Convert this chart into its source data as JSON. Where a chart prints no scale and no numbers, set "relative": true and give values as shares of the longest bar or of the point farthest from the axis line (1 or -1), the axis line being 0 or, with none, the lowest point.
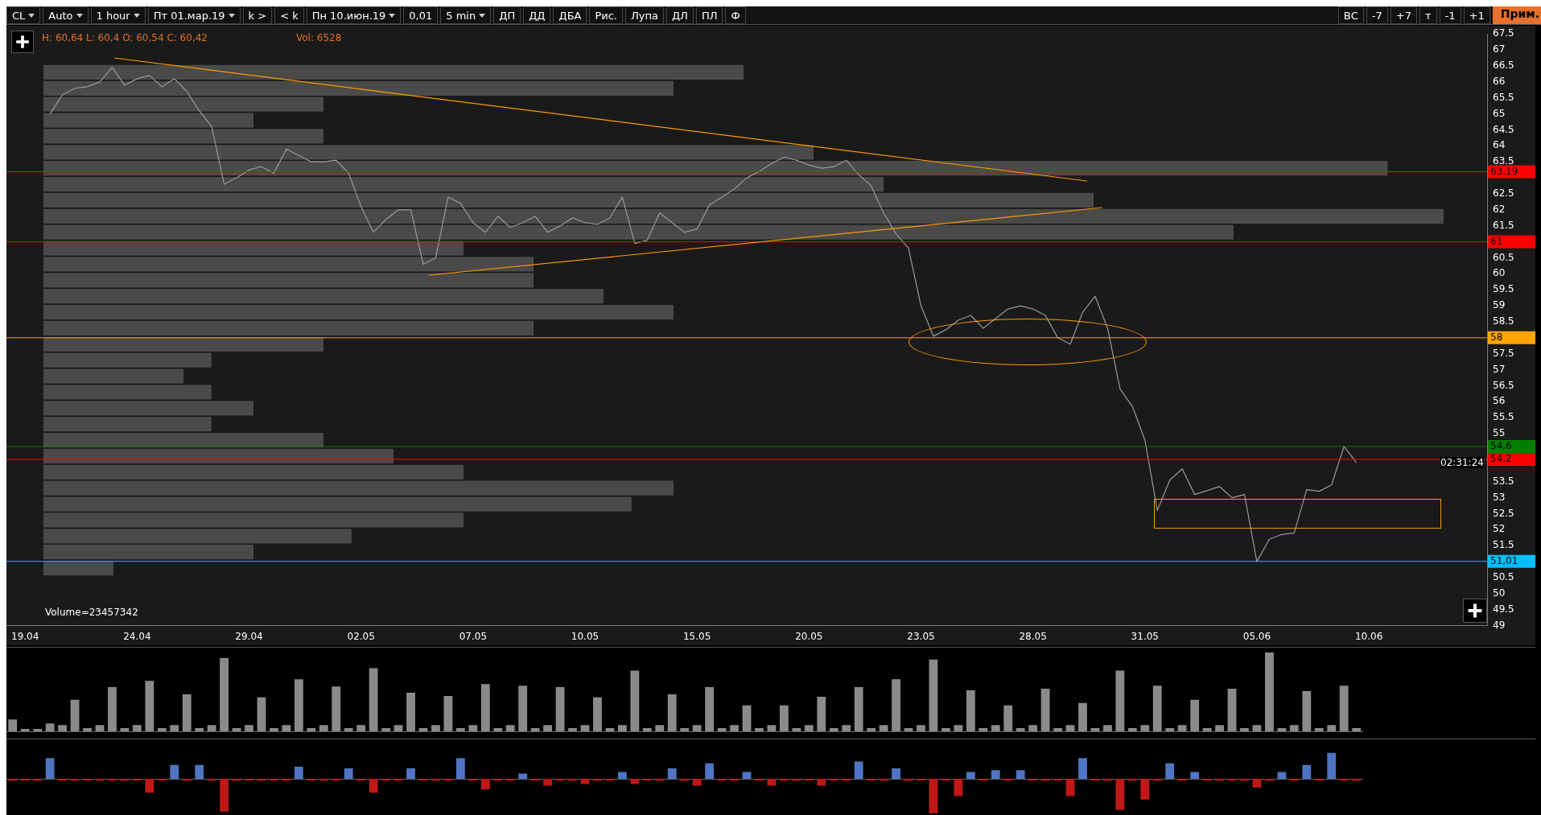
{
  "chart_data": [
    {
      "type": "other",
      "annotations": [
        "CL",
        "Auto",
        "1 hour",
        "Пт 01.мар.19",
        "k >",
        "< k",
        "Пн 10.июн.19",
        "0,01",
        "5 min",
        "ДП",
        "ДД",
        "ДБА",
        "Рис.",
        "Лупа",
        "ДЛ",
        "ПЛ",
        "Ф",
        "ВС",
        "-7",
        "+7",
        "т",
        "-1",
        "+1",
        "Прим."
      ]
    },
    {
      "type": "line",
      "ylim": [
        49,
        67.5
      ],
      "categories": [
        null,
        "19.04",
        null,
        null,
        null,
        null,
        null,
        null,
        null,
        null,
        "24.04",
        null,
        null,
        null,
        null,
        null,
        null,
        null,
        null,
        "29.04",
        null,
        null,
        null,
        null,
        null,
        null,
        null,
        null,
        "02.05",
        null,
        null,
        null,
        null,
        null,
        null,
        null,
        null,
        "07.05",
        null,
        null,
        null,
        null,
        null,
        null,
        null,
        null,
        "10.05",
        null,
        null,
        null,
        null,
        null,
        null,
        null,
        null,
        "15.05",
        null,
        null,
        null,
        null,
        null,
        null,
        null,
        null,
        "20.05",
        null,
        null,
        null,
        null,
        null,
        null,
        null,
        null,
        "23.05",
        null,
        null,
        null,
        null,
        null,
        null,
        null,
        null,
        "28.05",
        null,
        null,
        null,
        null,
        null,
        null,
        null,
        null,
        "31.05",
        null,
        null,
        null,
        null,
        null,
        null,
        null,
        null,
        "05.06",
        null,
        null,
        null,
        null,
        null,
        null,
        null,
        null,
        "10.06",
        null,
        null,
        null,
        null,
        null,
        null,
        null,
        null,
        null
      ],
      "yticks": [
        49,
        49.5,
        50,
        50.5,
        51.5,
        52,
        52.5,
        53,
        53.5,
        55,
        55.5,
        56,
        56.5,
        57,
        57.5,
        58.5,
        59,
        59.5,
        60,
        60.5,
        61.5,
        62,
        62.5,
        63.5,
        64,
        64.5,
        65,
        65.5,
        66,
        66.5,
        67,
        67.5
      ],
      "series": [
        {
          "color": "#9a9a9a",
          "values": [
            null,
            null,
            null,
            65.0,
            65.6,
            65.8,
            65.85,
            66.0,
            66.45,
            65.9,
            66.1,
            66.2,
            65.85,
            66.1,
            65.7,
            65.1,
            64.6,
            62.8,
            63.0,
            63.25,
            63.35,
            63.15,
            63.9,
            63.7,
            63.5,
            63.5,
            63.55,
            63.15,
            62.1,
            61.3,
            61.7,
            62.0,
            62.0,
            60.3,
            60.5,
            62.4,
            62.2,
            61.6,
            61.3,
            61.8,
            61.45,
            61.6,
            61.8,
            61.3,
            61.5,
            61.75,
            61.6,
            61.55,
            61.75,
            62.4,
            60.95,
            61.05,
            61.9,
            61.6,
            61.3,
            61.4,
            62.15,
            62.4,
            62.65,
            63.0,
            63.2,
            63.45,
            63.65,
            63.55,
            63.4,
            63.3,
            63.35,
            63.55,
            63.1,
            62.75,
            61.9,
            61.25,
            60.8,
            59.0,
            58.05,
            58.25,
            58.55,
            58.7,
            58.3,
            58.6,
            58.9,
            59.0,
            58.9,
            58.7,
            58.0,
            57.8,
            58.8,
            59.3,
            58.3,
            56.4,
            55.85,
            54.8,
            52.6,
            53.55,
            53.9,
            53.1,
            53.22,
            53.35,
            53.0,
            53.1,
            51.0,
            51.7,
            51.85,
            51.9,
            53.25,
            53.2,
            53.4,
            54.6,
            54.1,
            null,
            null,
            null,
            null,
            null,
            null,
            null,
            null,
            null,
            null
          ]
        }
      ],
      "ref_lines": [
        {
          "axis": "y",
          "value": 63.19,
          "label": "63,19",
          "color": "#ff0000"
        },
        {
          "axis": "y",
          "value": 61,
          "label": "61",
          "color": "#ff0000"
        },
        {
          "axis": "y",
          "value": 58,
          "label": "58",
          "color": "#ffa500"
        },
        {
          "axis": "y",
          "value": 54.6,
          "label": "54,6",
          "color": "#008000"
        },
        {
          "axis": "y",
          "value": 54.2,
          "label": "54,2",
          "color": "#ff0000"
        },
        {
          "axis": "y",
          "value": 51.01,
          "label": "51,01",
          "color": "#00bfff"
        }
      ],
      "annotations": [
        "H: 60,64 L: 60,4 O: 60,54 C: 60,42",
        "Vol: 6528",
        "Volume=23457342",
        "02:31:24"
      ],
      "grid": false,
      "legend": false
    },
    {
      "type": "bar",
      "orientation": "horizontal",
      "relative": true,
      "color": "#4a4a4a",
      "categories": [
        null,
        null,
        null,
        null,
        null,
        null,
        null,
        null,
        null,
        null,
        null,
        null,
        null,
        null,
        null,
        null,
        null,
        null,
        null,
        null,
        null,
        null,
        null,
        null,
        null,
        null,
        null,
        null,
        null,
        null,
        null,
        null
      ],
      "values": [
        0.5,
        0.45,
        0.2,
        0.15,
        0.2,
        0.55,
        0.96,
        0.6,
        0.75,
        1.0,
        0.85,
        0.3,
        0.35,
        0.35,
        0.4,
        0.45,
        0.35,
        0.2,
        0.12,
        0.1,
        0.12,
        0.15,
        0.12,
        0.2,
        0.25,
        0.3,
        0.45,
        0.42,
        0.3,
        0.22,
        0.15,
        0.05
      ]
    },
    {
      "type": "bar",
      "relative": true,
      "color": "#8a8a8a",
      "categories": [
        null,
        null,
        null,
        null,
        null,
        null,
        null,
        null,
        null,
        null,
        null,
        null,
        null,
        null,
        null,
        null,
        null,
        null,
        null,
        null,
        null,
        null,
        null,
        null,
        null,
        null,
        null,
        null,
        null,
        null,
        null,
        null,
        null,
        null,
        null,
        null,
        null,
        null,
        null,
        null,
        null,
        null,
        null,
        null,
        null,
        null,
        null,
        null,
        null,
        null,
        null,
        null,
        null,
        null,
        null,
        null,
        null,
        null,
        null,
        null,
        null,
        null,
        null,
        null,
        null,
        null,
        null,
        null,
        null,
        null,
        null,
        null,
        null,
        null,
        null,
        null,
        null,
        null,
        null,
        null,
        null,
        null,
        null,
        null,
        null,
        null,
        null,
        null,
        null,
        null,
        null,
        null,
        null,
        null,
        null,
        null,
        null,
        null,
        null,
        null,
        null,
        null,
        null,
        null,
        null,
        null,
        null,
        null,
        null
      ],
      "values": [
        0.15,
        0.03,
        0.03,
        0.1,
        0.08,
        0.4,
        0.04,
        0.08,
        0.56,
        0.04,
        0.08,
        0.64,
        0.04,
        0.08,
        0.47,
        0.04,
        0.08,
        0.93,
        0.04,
        0.08,
        0.43,
        0.04,
        0.08,
        0.66,
        0.04,
        0.08,
        0.57,
        0.04,
        0.08,
        0.8,
        0.04,
        0.08,
        0.49,
        0.04,
        0.08,
        0.45,
        0.04,
        0.08,
        0.6,
        0.04,
        0.08,
        0.58,
        0.04,
        0.08,
        0.56,
        0.04,
        0.08,
        0.43,
        0.04,
        0.08,
        0.77,
        0.04,
        0.08,
        0.47,
        0.04,
        0.08,
        0.56,
        0.04,
        0.08,
        0.33,
        0.04,
        0.08,
        0.33,
        0.04,
        0.08,
        0.44,
        0.04,
        0.08,
        0.56,
        0.04,
        0.08,
        0.66,
        0.04,
        0.08,
        0.91,
        0.04,
        0.08,
        0.52,
        0.04,
        0.08,
        0.33,
        0.04,
        0.08,
        0.54,
        0.04,
        0.08,
        0.36,
        0.04,
        0.08,
        0.77,
        0.04,
        0.08,
        0.58,
        0.04,
        0.08,
        0.4,
        0.04,
        0.08,
        0.54,
        0.04,
        0.08,
        1,
        0.04,
        0.08,
        0.51,
        0.04,
        0.08,
        0.58,
        0.04
      ]
    },
    {
      "type": "bar",
      "relative": true,
      "categories": [
        null,
        null,
        null,
        null,
        null,
        null,
        null,
        null,
        null,
        null,
        null,
        null,
        null,
        null,
        null,
        null,
        null,
        null,
        null,
        null,
        null,
        null,
        null,
        null,
        null,
        null,
        null,
        null,
        null,
        null,
        null,
        null,
        null,
        null,
        null,
        null,
        null,
        null,
        null,
        null,
        null,
        null,
        null,
        null,
        null,
        null,
        null,
        null,
        null,
        null,
        null,
        null,
        null,
        null,
        null,
        null,
        null,
        null,
        null,
        null,
        null,
        null,
        null,
        null,
        null,
        null,
        null,
        null,
        null,
        null,
        null,
        null,
        null,
        null,
        null,
        null,
        null,
        null,
        null,
        null,
        null,
        null,
        null,
        null,
        null,
        null,
        null,
        null,
        null,
        null,
        null,
        null,
        null,
        null,
        null,
        null,
        null,
        null,
        null,
        null,
        null,
        null,
        null,
        null,
        null,
        null,
        null,
        null,
        null
      ],
      "values": [
        -0.05,
        -0.05,
        -0.05,
        0.6,
        -0.05,
        -0.05,
        -0.05,
        -0.05,
        -0.05,
        -0.05,
        -0.05,
        -0.4,
        -0.05,
        0.4,
        -0.05,
        0.4,
        -0.05,
        -0.95,
        -0.05,
        -0.05,
        -0.05,
        -0.05,
        -0.05,
        0.35,
        -0.05,
        -0.05,
        -0.05,
        0.3,
        -0.05,
        -0.4,
        -0.05,
        -0.05,
        0.3,
        -0.05,
        -0.05,
        -0.05,
        0.6,
        -0.05,
        -0.3,
        -0.05,
        -0.05,
        0.15,
        -0.05,
        -0.2,
        -0.05,
        -0.05,
        -0.15,
        -0.05,
        -0.05,
        0.2,
        -0.15,
        -0.05,
        -0.05,
        0.3,
        -0.05,
        -0.2,
        0.45,
        -0.05,
        -0.05,
        0.2,
        -0.05,
        -0.2,
        -0.05,
        -0.05,
        -0.05,
        -0.2,
        -0.05,
        -0.05,
        0.5,
        -0.05,
        -0.05,
        0.3,
        -0.05,
        -0.05,
        -1,
        -0.05,
        -0.5,
        0.2,
        -0.05,
        0.25,
        -0.05,
        0.25,
        -0.05,
        -0.05,
        -0.05,
        -0.5,
        0.6,
        -0.05,
        -0.05,
        -0.9,
        -0.05,
        -0.6,
        -0.05,
        0.45,
        -0.05,
        0.2,
        -0.05,
        -0.05,
        -0.05,
        -0.05,
        -0.25,
        -0.05,
        0.2,
        -0.05,
        0.4,
        -0.05,
        0.75,
        -0.05,
        -0.05
      ],
      "colors": [
        "#c01818",
        "#c01818",
        "#c01818",
        "#4f74c1",
        "#c01818",
        "#c01818",
        "#c01818",
        "#c01818",
        "#c01818",
        "#c01818",
        "#c01818",
        "#c01818",
        "#c01818",
        "#4f74c1",
        "#c01818",
        "#4f74c1",
        "#c01818",
        "#c01818",
        "#c01818",
        "#c01818",
        "#c01818",
        "#c01818",
        "#c01818",
        "#4f74c1",
        "#c01818",
        "#c01818",
        "#c01818",
        "#4f74c1",
        "#c01818",
        "#c01818",
        "#c01818",
        "#c01818",
        "#4f74c1",
        "#c01818",
        "#c01818",
        "#c01818",
        "#4f74c1",
        "#c01818",
        "#c01818",
        "#c01818",
        "#c01818",
        "#4f74c1",
        "#c01818",
        "#c01818",
        "#c01818",
        "#c01818",
        "#c01818",
        "#c01818",
        "#c01818",
        "#4f74c1",
        "#c01818",
        "#c01818",
        "#c01818",
        "#4f74c1",
        "#c01818",
        "#c01818",
        "#4f74c1",
        "#c01818",
        "#c01818",
        "#4f74c1",
        "#c01818",
        "#c01818",
        "#c01818",
        "#c01818",
        "#c01818",
        "#c01818",
        "#c01818",
        "#c01818",
        "#4f74c1",
        "#c01818",
        "#c01818",
        "#4f74c1",
        "#c01818",
        "#c01818",
        "#c01818",
        "#c01818",
        "#c01818",
        "#4f74c1",
        "#c01818",
        "#4f74c1",
        "#c01818",
        "#4f74c1",
        "#c01818",
        "#c01818",
        "#c01818",
        "#c01818",
        "#4f74c1",
        "#c01818",
        "#c01818",
        "#c01818",
        "#c01818",
        "#c01818",
        "#c01818",
        "#4f74c1",
        "#c01818",
        "#4f74c1",
        "#c01818",
        "#c01818",
        "#c01818",
        "#c01818",
        "#c01818",
        "#c01818",
        "#4f74c1",
        "#c01818",
        "#4f74c1",
        "#c01818",
        "#4f74c1",
        "#c01818",
        "#c01818"
      ]
    }
  ]
}
